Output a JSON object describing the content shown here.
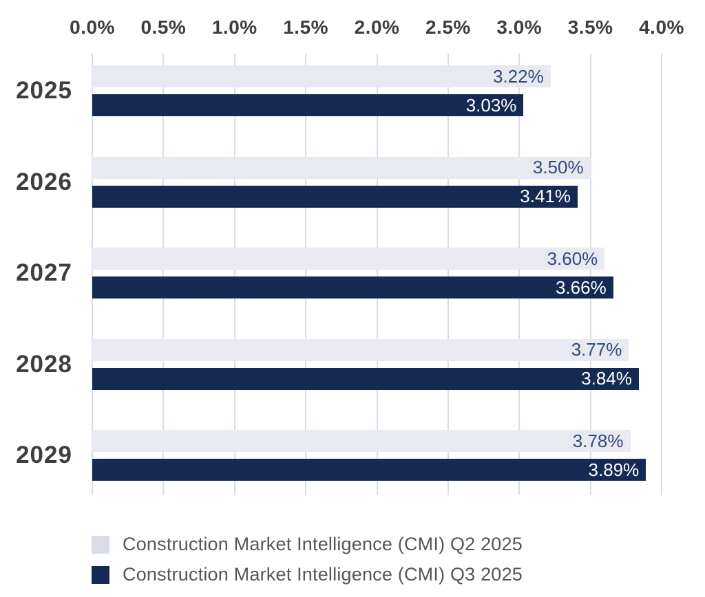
{
  "chart_data": {
    "type": "bar",
    "orientation": "horizontal",
    "title": "",
    "categories": [
      "2025",
      "2026",
      "2027",
      "2028",
      "2029"
    ],
    "series": [
      {
        "name": "Construction Market Intelligence (CMI) Q2 2025",
        "values": [
          3.22,
          3.5,
          3.6,
          3.77,
          3.78
        ],
        "labels": [
          "3.22%",
          "3.50%",
          "3.60%",
          "3.77%",
          "3.78%"
        ],
        "bar_color": "#e8e9f1",
        "swatch_color": "#d9dce6",
        "label_color": "#33497b"
      },
      {
        "name": "Construction Market Intelligence (CMI) Q3 2025",
        "values": [
          3.03,
          3.41,
          3.66,
          3.84,
          3.89
        ],
        "labels": [
          "3.03%",
          "3.41%",
          "3.66%",
          "3.84%",
          "3.89%"
        ],
        "bar_color": "#152a52",
        "swatch_color": "#142a55",
        "label_color": "#ffffff"
      }
    ],
    "x_axis": {
      "position": "top",
      "min": 0,
      "max": 4,
      "ticks": [
        "0.0%",
        "0.5%",
        "1.0%",
        "1.5%",
        "2.0%",
        "2.5%",
        "3.0%",
        "3.5%",
        "4.0%"
      ]
    },
    "grid": true,
    "legend_position": "bottom"
  }
}
